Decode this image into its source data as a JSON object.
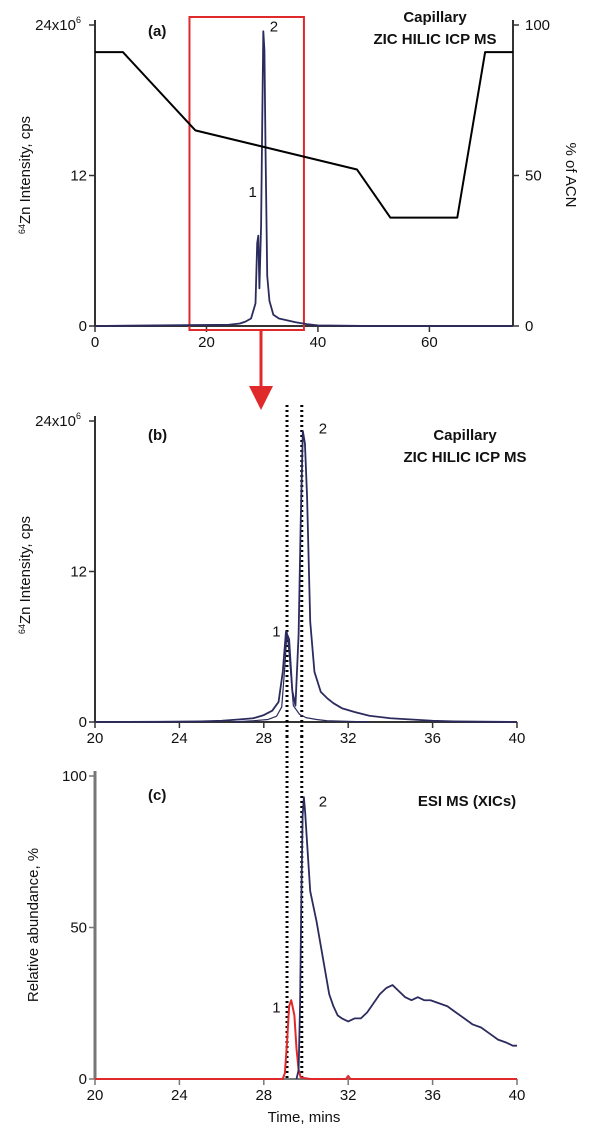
{
  "colors": {
    "trace": "#2c2b5e",
    "gradient": "#000000",
    "box": "#e0292b",
    "arrow": "#e0292b",
    "xic1": "#e0292b",
    "axis": "#333333",
    "axis_c": "#777777"
  },
  "chart_data": [
    {
      "id": "a",
      "type": "line",
      "panel_label": "(a)",
      "title": "Capillary ZIC HILIC ICP MS",
      "title_lines": [
        "Capillary",
        "ZIC HILIC ICP MS"
      ],
      "ylabel_sup": "64",
      "ylabel_rest": "Zn Intensity, cps",
      "y2label": "% of ACN",
      "xlim": [
        0,
        75
      ],
      "ylim": [
        0,
        24
      ],
      "y2lim": [
        0,
        100
      ],
      "xticks": [
        "0",
        "20",
        "40",
        "60"
      ],
      "xtick_values": [
        0,
        20,
        40,
        60
      ],
      "yticks": [
        "0",
        "12",
        "24x10"
      ],
      "ytick_top_sup": "6",
      "ytick_values": [
        0,
        12,
        24
      ],
      "y2ticks": [
        "0",
        "50",
        "100"
      ],
      "y2tick_values": [
        0,
        50,
        100
      ],
      "highlight_xrange": [
        20,
        40
      ],
      "series": [
        {
          "axis": "y",
          "points": [
            [
              0,
              0
            ],
            [
              24,
              0.1
            ],
            [
              26,
              0.2
            ],
            [
              27,
              0.35
            ],
            [
              28,
              0.6
            ],
            [
              28.8,
              1.8
            ],
            [
              29.1,
              6.6
            ],
            [
              29.3,
              7.2
            ],
            [
              29.5,
              3
            ],
            [
              29.8,
              8
            ],
            [
              30,
              16
            ],
            [
              30.2,
              23.5
            ],
            [
              30.4,
              22
            ],
            [
              30.6,
              14
            ],
            [
              30.9,
              4
            ],
            [
              31.3,
              2
            ],
            [
              32,
              0.9
            ],
            [
              33,
              0.6
            ],
            [
              34,
              0.5
            ],
            [
              36,
              0.3
            ],
            [
              38,
              0.15
            ],
            [
              40,
              0.05
            ],
            [
              50,
              0
            ],
            [
              75,
              0
            ]
          ]
        },
        {
          "axis": "y2",
          "points": [
            [
              0,
              91
            ],
            [
              5,
              91
            ],
            [
              18,
              65
            ],
            [
              47,
              52
            ],
            [
              53,
              36
            ],
            [
              65,
              36
            ],
            [
              70,
              91
            ],
            [
              75,
              91
            ]
          ]
        }
      ],
      "annotations": [
        {
          "text": "1",
          "x": 28.3,
          "y": 10.3
        },
        {
          "text": "2",
          "x": 32.1,
          "y": 23.5
        }
      ]
    },
    {
      "id": "b",
      "type": "line",
      "panel_label": "(b)",
      "title": "Capillary ZIC HILIC ICP MS",
      "title_lines": [
        "Capillary",
        "ZIC HILIC ICP MS"
      ],
      "ylabel_sup": "64",
      "ylabel_rest": "Zn Intensity, cps",
      "xlim": [
        20,
        40
      ],
      "ylim": [
        0,
        24
      ],
      "xticks": [
        "20",
        "24",
        "28",
        "32",
        "36",
        "40"
      ],
      "xtick_values": [
        20,
        24,
        28,
        32,
        36,
        40
      ],
      "yticks": [
        "0",
        "12",
        "24x10"
      ],
      "ytick_top_sup": "6",
      "ytick_values": [
        0,
        12,
        24
      ],
      "dotted_lines_x": [
        29.1,
        29.8
      ],
      "series": [
        {
          "points": [
            [
              20,
              0
            ],
            [
              23,
              0.02
            ],
            [
              25,
              0.05
            ],
            [
              26,
              0.1
            ],
            [
              26.8,
              0.2
            ],
            [
              27.5,
              0.3
            ],
            [
              28,
              0.55
            ],
            [
              28.4,
              0.9
            ],
            [
              28.7,
              1.6
            ],
            [
              28.9,
              4
            ],
            [
              29.05,
              7.2
            ],
            [
              29.2,
              6.6
            ],
            [
              29.35,
              2.5
            ],
            [
              29.5,
              1.3
            ],
            [
              29.65,
              7
            ],
            [
              29.75,
              16
            ],
            [
              29.85,
              23.2
            ],
            [
              29.95,
              22.2
            ],
            [
              30.05,
              18
            ],
            [
              30.2,
              8
            ],
            [
              30.4,
              4
            ],
            [
              30.7,
              2.4
            ],
            [
              31.0,
              1.9
            ],
            [
              31.3,
              1.5
            ],
            [
              31.7,
              1.1
            ],
            [
              32.3,
              0.8
            ],
            [
              33,
              0.5
            ],
            [
              34,
              0.3
            ],
            [
              35,
              0.2
            ],
            [
              36,
              0.1
            ],
            [
              37,
              0.05
            ],
            [
              40,
              0
            ]
          ]
        },
        {
          "points": [
            [
              26.5,
              0
            ],
            [
              27.5,
              0.1
            ],
            [
              28.2,
              0.2
            ],
            [
              28.6,
              0.45
            ],
            [
              28.85,
              1.2
            ],
            [
              29.0,
              4.5
            ],
            [
              29.1,
              7.2
            ],
            [
              29.2,
              5.5
            ],
            [
              29.4,
              1.3
            ],
            [
              29.7,
              0.6
            ],
            [
              30.0,
              0.35
            ],
            [
              30.5,
              0.2
            ],
            [
              31,
              0.1
            ],
            [
              32,
              0.05
            ],
            [
              33,
              0
            ]
          ]
        }
      ],
      "annotations": [
        {
          "text": "1",
          "x": 28.6,
          "y": 6.8
        },
        {
          "text": "2",
          "x": 30.8,
          "y": 23.0
        }
      ]
    },
    {
      "id": "c",
      "type": "line",
      "panel_label": "(c)",
      "title": "ESI MS (XICs)",
      "ylabel": "Relative abundance, %",
      "xlabel": "Time, mins",
      "xlim": [
        20,
        40
      ],
      "ylim": [
        0,
        100
      ],
      "xticks": [
        "20",
        "24",
        "28",
        "32",
        "36",
        "40"
      ],
      "xtick_values": [
        20,
        24,
        28,
        32,
        36,
        40
      ],
      "yticks": [
        "0",
        "50",
        "100"
      ],
      "ytick_values": [
        0,
        50,
        100
      ],
      "dotted_lines_x": [
        29.1,
        29.8
      ],
      "series": [
        {
          "name": "1",
          "points": [
            [
              20,
              0
            ],
            [
              28.9,
              0
            ],
            [
              29.0,
              2
            ],
            [
              29.1,
              12
            ],
            [
              29.2,
              24
            ],
            [
              29.3,
              26
            ],
            [
              29.45,
              21
            ],
            [
              29.55,
              10
            ],
            [
              29.65,
              3
            ],
            [
              29.75,
              0.5
            ],
            [
              30.2,
              0
            ],
            [
              31.9,
              0
            ],
            [
              32.0,
              1
            ],
            [
              32.1,
              0
            ],
            [
              40,
              0
            ]
          ]
        },
        {
          "name": "2",
          "points": [
            [
              29.55,
              0
            ],
            [
              29.65,
              3
            ],
            [
              29.72,
              25
            ],
            [
              29.78,
              60
            ],
            [
              29.84,
              87
            ],
            [
              29.9,
              93
            ],
            [
              29.96,
              88
            ],
            [
              30.05,
              78
            ],
            [
              30.2,
              62
            ],
            [
              30.35,
              57
            ],
            [
              30.5,
              52
            ],
            [
              30.7,
              44
            ],
            [
              30.9,
              36
            ],
            [
              31.1,
              28
            ],
            [
              31.3,
              24
            ],
            [
              31.5,
              21
            ],
            [
              31.7,
              20
            ],
            [
              32,
              19
            ],
            [
              32.3,
              20
            ],
            [
              32.6,
              20
            ],
            [
              32.9,
              22
            ],
            [
              33.2,
              25
            ],
            [
              33.5,
              28
            ],
            [
              33.8,
              30
            ],
            [
              34.1,
              31
            ],
            [
              34.4,
              29
            ],
            [
              34.7,
              27
            ],
            [
              35,
              26
            ],
            [
              35.3,
              27
            ],
            [
              35.6,
              26
            ],
            [
              35.9,
              26
            ],
            [
              36.3,
              25
            ],
            [
              36.7,
              24
            ],
            [
              37.1,
              22
            ],
            [
              37.5,
              20
            ],
            [
              37.9,
              18
            ],
            [
              38.3,
              17
            ],
            [
              38.7,
              15
            ],
            [
              39.1,
              13
            ],
            [
              39.5,
              12
            ],
            [
              39.8,
              11
            ],
            [
              40,
              11
            ]
          ]
        }
      ],
      "annotations": [
        {
          "text": "1",
          "x": 28.6,
          "y": 22
        },
        {
          "text": "2",
          "x": 30.8,
          "y": 90
        }
      ]
    }
  ]
}
